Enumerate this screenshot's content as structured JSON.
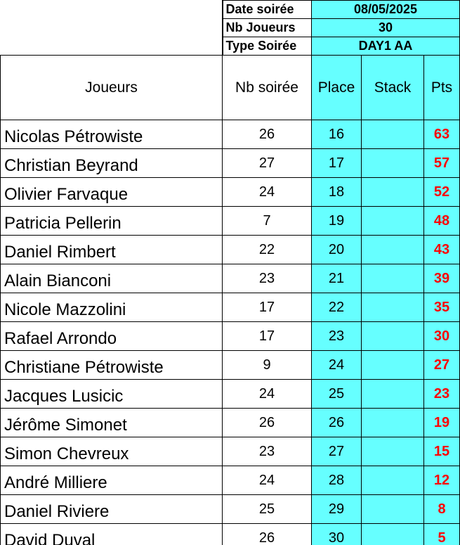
{
  "info": {
    "date_label": "Date soirée",
    "date_value": "08/05/2025",
    "players_label": "Nb Joueurs",
    "players_value": "30",
    "type_label": "Type Soirée",
    "type_value": "DAY1 AA"
  },
  "columns": {
    "joueurs": "Joueurs",
    "nb_soiree": "Nb soirée",
    "place": "Place",
    "stack": "Stack",
    "pts": "Pts"
  },
  "colors": {
    "highlight": "#66ffff",
    "points": "#ff0000"
  },
  "rows": [
    {
      "name": "Nicolas Pétrowiste",
      "nb": "26",
      "place": "16",
      "stack": "",
      "pts": "63"
    },
    {
      "name": "Christian Beyrand",
      "nb": "27",
      "place": "17",
      "stack": "",
      "pts": "57"
    },
    {
      "name": "Olivier Farvaque",
      "nb": "24",
      "place": "18",
      "stack": "",
      "pts": "52"
    },
    {
      "name": "Patricia Pellerin",
      "nb": "7",
      "place": "19",
      "stack": "",
      "pts": "48"
    },
    {
      "name": "Daniel Rimbert",
      "nb": "22",
      "place": "20",
      "stack": "",
      "pts": "43"
    },
    {
      "name": "Alain Bianconi",
      "nb": "23",
      "place": "21",
      "stack": "",
      "pts": "39"
    },
    {
      "name": "Nicole Mazzolini",
      "nb": "17",
      "place": "22",
      "stack": "",
      "pts": "35"
    },
    {
      "name": "Rafael Arrondo",
      "nb": "17",
      "place": "23",
      "stack": "",
      "pts": "30"
    },
    {
      "name": "Christiane Pétrowiste",
      "nb": "9",
      "place": "24",
      "stack": "",
      "pts": "27"
    },
    {
      "name": "Jacques Lusicic",
      "nb": "24",
      "place": "25",
      "stack": "",
      "pts": "23"
    },
    {
      "name": "Jérôme Simonet",
      "nb": "26",
      "place": "26",
      "stack": "",
      "pts": "19"
    },
    {
      "name": "Simon Chevreux",
      "nb": "23",
      "place": "27",
      "stack": "",
      "pts": "15"
    },
    {
      "name": "André Milliere",
      "nb": "24",
      "place": "28",
      "stack": "",
      "pts": "12"
    },
    {
      "name": "Daniel Riviere",
      "nb": "25",
      "place": "29",
      "stack": "",
      "pts": "8"
    },
    {
      "name": "David Duval",
      "nb": "26",
      "place": "30",
      "stack": "",
      "pts": "5"
    }
  ]
}
